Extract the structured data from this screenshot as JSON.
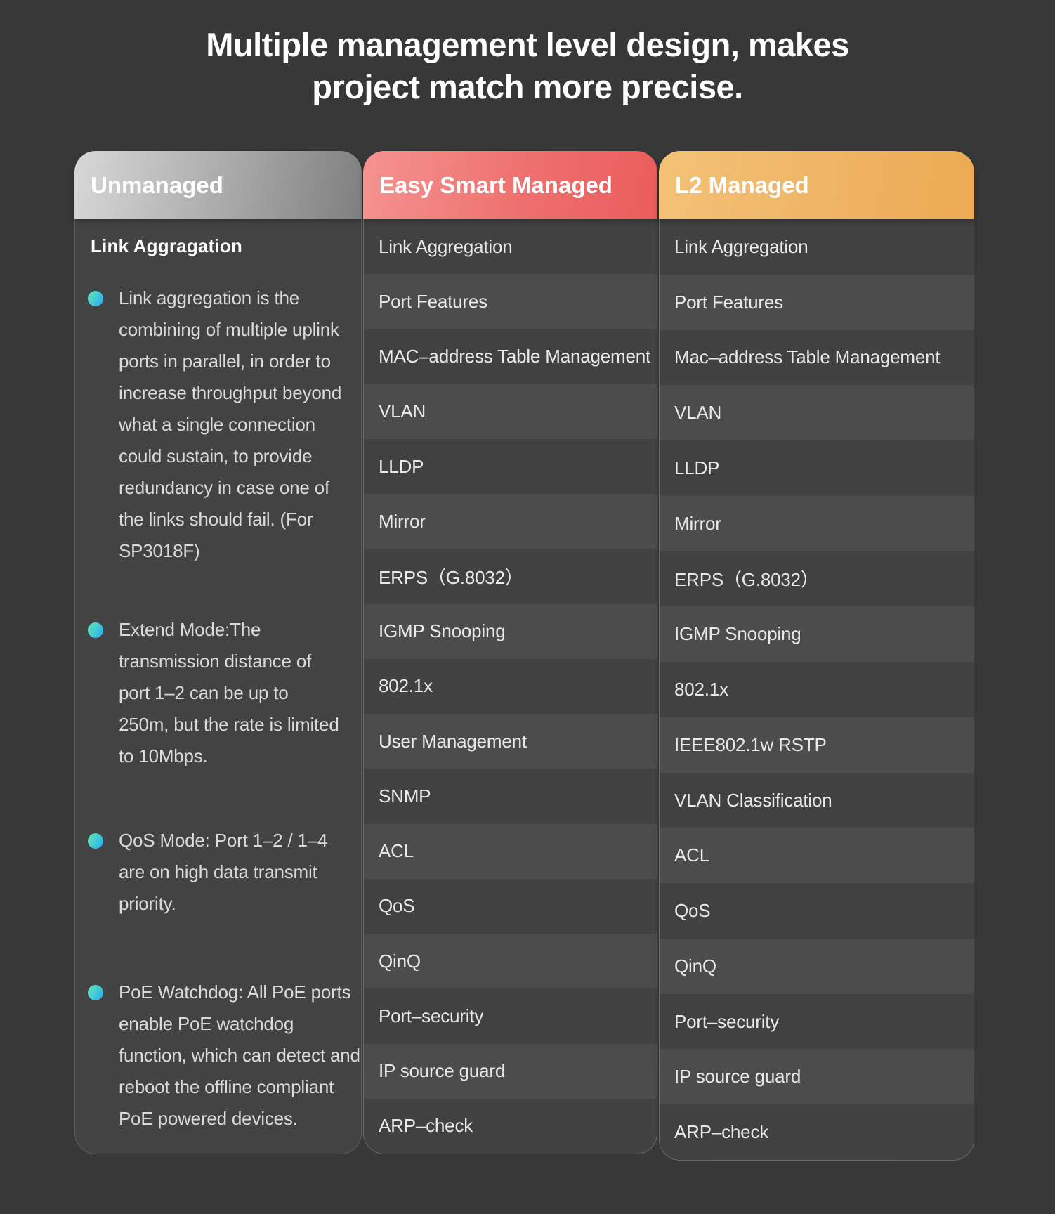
{
  "title": {
    "line1": "Multiple management level design, makes",
    "line2": "project match more precise."
  },
  "columns": {
    "unmanaged": {
      "header_label": "Unmanaged",
      "section_heading": "Link Aggragation",
      "bullets": [
        {
          "lines": [
            "Link aggregation is the",
            "combining of multiple uplink",
            "ports in parallel, in order to",
            "increase throughput beyond",
            "what a single connection",
            "could sustain, to provide",
            "redundancy in case one of",
            "the links should fail. (For",
            "SP3018F)"
          ]
        },
        {
          "lines": [
            "Extend Mode:The",
            "transmission distance of",
            "port 1–2 can be up to",
            "250m, but the rate is limited",
            "to 10Mbps."
          ]
        },
        {
          "lines": [
            "QoS Mode: Port 1–2 / 1–4",
            "are on high data transmit",
            "priority."
          ]
        },
        {
          "lines": [
            "PoE Watchdog: All PoE ports",
            "enable PoE watchdog",
            "function, which can detect and",
            "reboot the offline compliant",
            "PoE powered devices."
          ]
        }
      ]
    },
    "easy_smart": {
      "header_label": "Easy Smart Managed",
      "features": [
        "Link Aggregation",
        "Port Features",
        "MAC–address Table Management",
        "VLAN",
        "LLDP",
        "Mirror",
        "ERPS（G.8032）",
        "IGMP Snooping",
        "802.1x",
        "User Management",
        "SNMP",
        "ACL",
        "QoS",
        "QinQ",
        "Port–security",
        "IP source guard",
        "ARP–check"
      ]
    },
    "l2": {
      "header_label": "L2 Managed",
      "features": [
        "Link Aggregation",
        "Port Features",
        "Mac–address Table Management",
        "VLAN",
        "LLDP",
        "Mirror",
        "ERPS（G.8032）",
        "IGMP Snooping",
        "802.1x",
        "IEEE802.1w RSTP",
        "VLAN Classification",
        "ACL",
        "QoS",
        "QinQ",
        "Port–security",
        "IP source guard",
        "ARP–check"
      ]
    }
  },
  "colors": {
    "page_bg": "#383838",
    "unmanaged_header_gradient": [
      "#d8d8d8",
      "#7f7f7f"
    ],
    "easy_smart_header_gradient": [
      "#f49390",
      "#ea5c5c"
    ],
    "l2_header_gradient": [
      "#f3c277",
      "#ecaa52"
    ],
    "unmanaged_body_bg": "#434343",
    "row_dark": "#414141",
    "row_light": "#4c4c4c",
    "row_text": "#e9e9e9",
    "bullet_text": "#dadada",
    "heading_text": "#ffffff",
    "bullet_dot_gradient": [
      "#5fe3bb",
      "#29aff0"
    ]
  }
}
